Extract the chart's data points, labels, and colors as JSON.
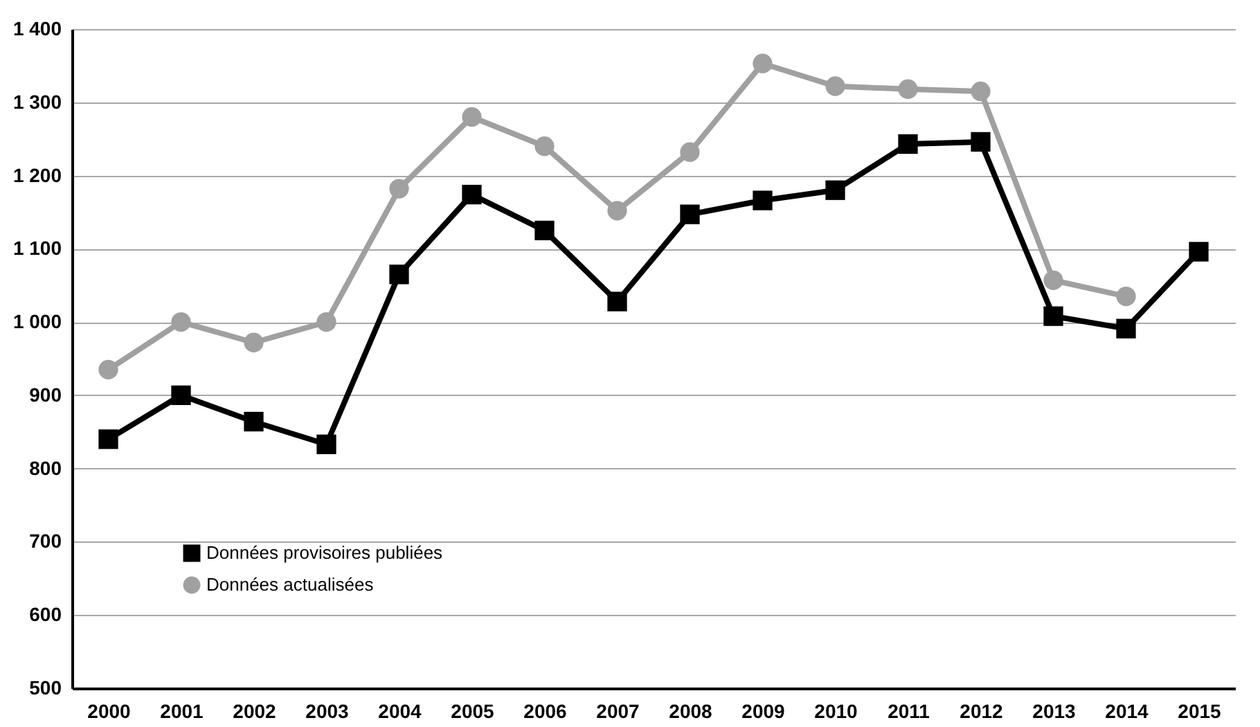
{
  "chart_data": {
    "type": "line",
    "categories": [
      "2000",
      "2001",
      "2002",
      "2003",
      "2004",
      "2005",
      "2006",
      "2007",
      "2008",
      "2009",
      "2010",
      "2011",
      "2012",
      "2013",
      "2014",
      "2015"
    ],
    "series": [
      {
        "name": "Données provisoires publiées",
        "color": "#000000",
        "marker": "square",
        "values": [
          840,
          900,
          864,
          833,
          1065,
          1174,
          1125,
          1028,
          1147,
          1166,
          1180,
          1243,
          1246,
          1008,
          991,
          1096
        ]
      },
      {
        "name": "Données actualisées",
        "color": "#a0a0a0",
        "marker": "circle",
        "values": [
          935,
          1000,
          972,
          1000,
          1182,
          1280,
          1240,
          1152,
          1232,
          1353,
          1322,
          1318,
          1315,
          1057,
          1035,
          null
        ]
      }
    ],
    "ylim": [
      500,
      1400
    ],
    "yticks": [
      500,
      600,
      700,
      800,
      900,
      {
        "value": 1000,
        "label": "1 000"
      },
      {
        "value": 1100,
        "label": "1 100"
      },
      {
        "value": 1200,
        "label": "1 200"
      },
      {
        "value": 1300,
        "label": "1 300"
      },
      {
        "value": 1400,
        "label": "1 400"
      }
    ],
    "grid": "y",
    "legend": "bottom left"
  }
}
